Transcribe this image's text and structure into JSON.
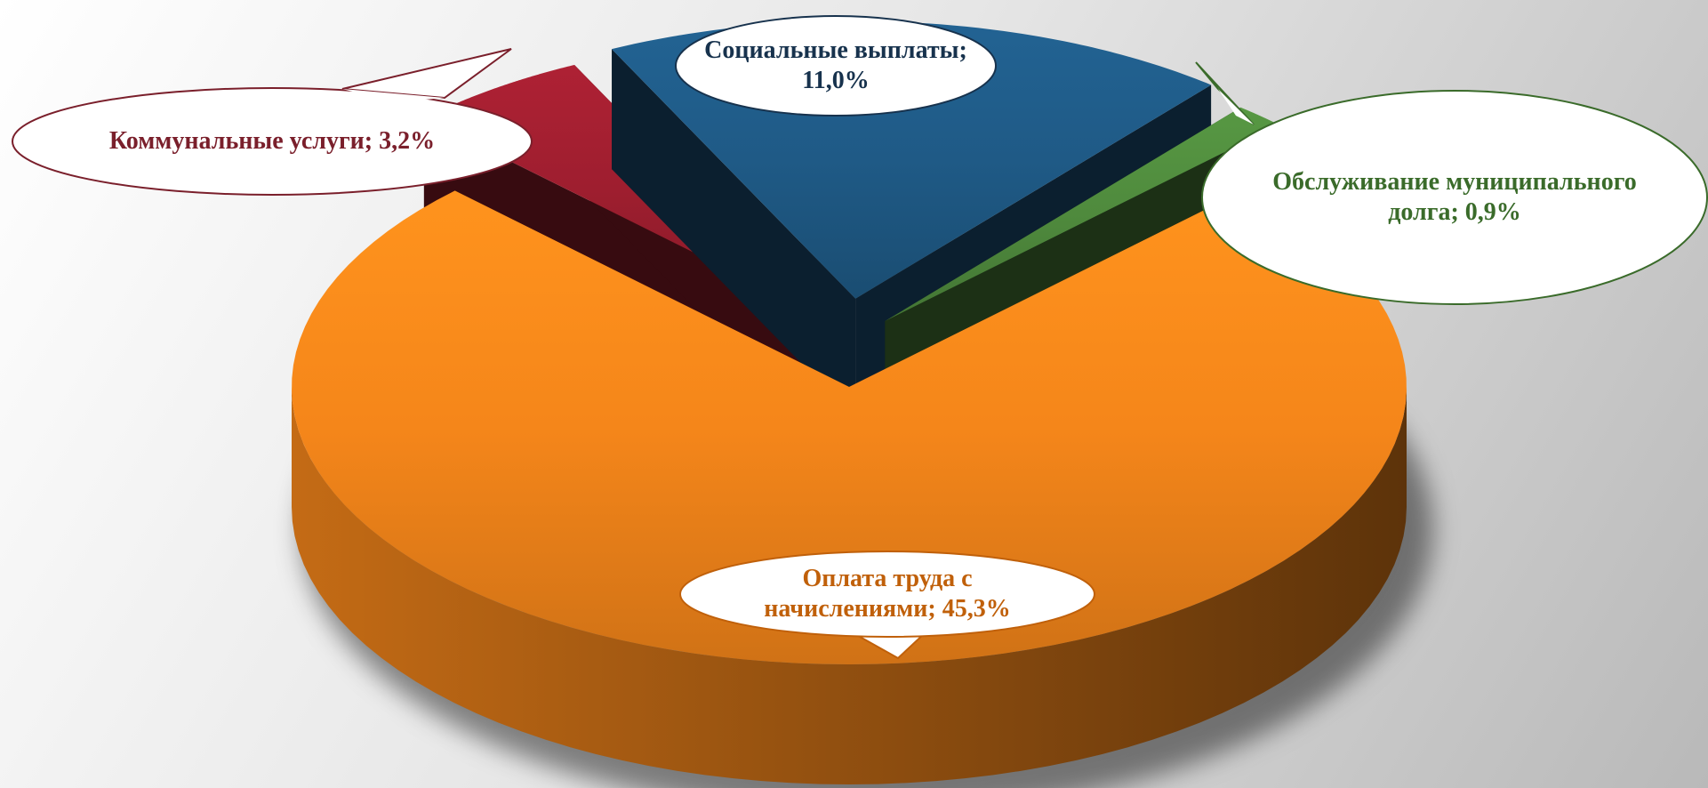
{
  "chart_data": {
    "type": "pie",
    "categories": [
      "Оплата труда с начислениями;",
      "Коммунальные услуги;",
      "Социальные выплаты;",
      "Обслуживание муниципального долга;"
    ],
    "values": [
      45.3,
      3.2,
      11.0,
      0.9
    ],
    "value_labels": [
      "45,3%",
      "3,2%",
      "11,0%",
      "0,9%"
    ],
    "colors": [
      "#f5861a",
      "#9e1e2f",
      "#1f5a86",
      "#4f8a3d"
    ],
    "label_colors": [
      "#c0600a",
      "#7a1f2b",
      "#17324d",
      "#3a6b2a"
    ]
  }
}
